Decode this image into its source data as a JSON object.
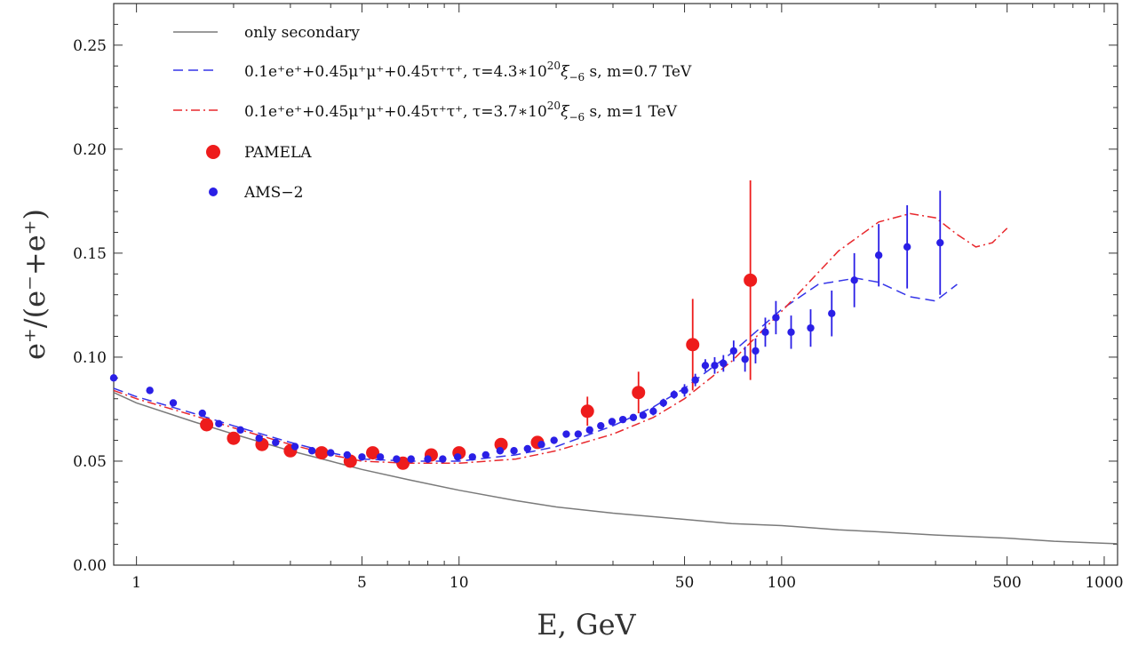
{
  "chart_data": {
    "type": "scatter",
    "xlabel": "E, GeV",
    "ylabel": "e⁺/(e⁻+e⁺)",
    "xscale": "log",
    "xlim": [
      0.85,
      1100
    ],
    "ylim": [
      0.0,
      0.27
    ],
    "grid": false,
    "legend_position": "top-left",
    "x_ticks": [
      {
        "value": 1,
        "label": "1"
      },
      {
        "value": 5,
        "label": "5"
      },
      {
        "value": 10,
        "label": "10"
      },
      {
        "value": 50,
        "label": "50"
      },
      {
        "value": 100,
        "label": "100"
      },
      {
        "value": 500,
        "label": "500"
      },
      {
        "value": 1000,
        "label": "1000"
      }
    ],
    "y_ticks": [
      {
        "value": 0.0,
        "label": "0.00"
      },
      {
        "value": 0.05,
        "label": "0.05"
      },
      {
        "value": 0.1,
        "label": "0.10"
      },
      {
        "value": 0.15,
        "label": "0.15"
      },
      {
        "value": 0.2,
        "label": "0.20"
      },
      {
        "value": 0.25,
        "label": "0.25"
      }
    ],
    "legend": {
      "secondary": "only secondary",
      "blue_model": {
        "text": "0.1e⁺e⁺+0.45μ⁺μ⁺+0.45τ⁺τ⁺,  τ=4.3∗10",
        "sup": "20",
        "tail": "ξ",
        "sub": "−6",
        "end": " s,  m=0.7 TeV"
      },
      "red_model": {
        "text": "0.1e⁺e⁺+0.45μ⁺μ⁺+0.45τ⁺τ⁺,  τ=3.7∗10",
        "sup": "20",
        "tail": "ξ",
        "sub": "−6",
        "end": " s,  m=1 TeV"
      },
      "pamela": "PAMELA",
      "ams": "AMS−2"
    },
    "colors": {
      "secondary": "#7a7a7a",
      "blue_model": "#3535e8",
      "red_model": "#e8282d",
      "pamela": "#ee1c1c",
      "ams": "#2a1fe6"
    },
    "series": [
      {
        "name": "only secondary",
        "kind": "line",
        "x": [
          0.85,
          1,
          1.5,
          2,
          3,
          4,
          5,
          7,
          10,
          15,
          20,
          30,
          50,
          70,
          100,
          150,
          200,
          300,
          500,
          700,
          1000,
          1100
        ],
        "y": [
          0.083,
          0.078,
          0.069,
          0.063,
          0.055,
          0.05,
          0.046,
          0.041,
          0.036,
          0.031,
          0.028,
          0.025,
          0.022,
          0.02,
          0.019,
          0.017,
          0.016,
          0.0145,
          0.013,
          0.0115,
          0.0105,
          0.0103
        ]
      },
      {
        "name": "0.1e⁺e⁺+0.45μ⁺μ⁺+0.45τ⁺τ⁺, τ=4.3∗10²⁰ξ₋₆ s, m=0.7 TeV",
        "kind": "dashed",
        "x": [
          0.85,
          1,
          1.5,
          2,
          3,
          4,
          5,
          7,
          10,
          15,
          20,
          30,
          40,
          50,
          70,
          100,
          130,
          170,
          200,
          250,
          300,
          350
        ],
        "y": [
          0.085,
          0.081,
          0.073,
          0.067,
          0.059,
          0.054,
          0.051,
          0.05,
          0.05,
          0.053,
          0.057,
          0.067,
          0.076,
          0.085,
          0.102,
          0.123,
          0.135,
          0.138,
          0.136,
          0.129,
          0.127,
          0.135
        ]
      },
      {
        "name": "0.1e⁺e⁺+0.45μ⁺μ⁺+0.45τ⁺τ⁺, τ=3.7∗10²⁰ξ₋₆ s, m=1 TeV",
        "kind": "dashdot",
        "x": [
          0.85,
          1,
          1.5,
          2,
          3,
          4,
          5,
          7,
          10,
          15,
          20,
          30,
          40,
          50,
          70,
          100,
          150,
          200,
          250,
          300,
          350,
          400,
          450,
          500
        ],
        "y": [
          0.084,
          0.08,
          0.072,
          0.066,
          0.058,
          0.053,
          0.05,
          0.049,
          0.049,
          0.051,
          0.055,
          0.063,
          0.071,
          0.08,
          0.098,
          0.122,
          0.151,
          0.165,
          0.169,
          0.167,
          0.159,
          0.153,
          0.155,
          0.162
        ]
      },
      {
        "name": "PAMELA",
        "kind": "points",
        "x": [
          1.65,
          2.0,
          2.45,
          3.0,
          3.75,
          4.6,
          5.4,
          6.7,
          8.2,
          10.0,
          13.5,
          17.5,
          25.0,
          36.0,
          53.0,
          80.0
        ],
        "y": [
          0.0675,
          0.061,
          0.058,
          0.055,
          0.054,
          0.05,
          0.054,
          0.049,
          0.053,
          0.054,
          0.058,
          0.059,
          0.074,
          0.083,
          0.106,
          0.137
        ],
        "err": [
          0.002,
          0.002,
          0.002,
          0.002,
          0.002,
          0.002,
          0.002,
          0.002,
          0.002,
          0.002,
          0.003,
          0.003,
          0.007,
          0.01,
          0.022,
          0.048
        ]
      },
      {
        "name": "AMS−2",
        "kind": "points",
        "x": [
          0.85,
          1.1,
          1.3,
          1.6,
          1.8,
          2.1,
          2.4,
          2.7,
          3.1,
          3.5,
          4.0,
          4.5,
          5.0,
          5.7,
          6.4,
          7.1,
          8.0,
          8.9,
          9.9,
          11.0,
          12.1,
          13.4,
          14.8,
          16.3,
          18.0,
          19.7,
          21.5,
          23.4,
          25.4,
          27.5,
          29.8,
          32.2,
          34.7,
          37.2,
          40.0,
          43.0,
          46.4,
          50.0,
          54.0,
          58.0,
          62.0,
          66.0,
          71.0,
          77.0,
          83.0,
          89.0,
          96.0,
          107.0,
          123.0,
          143.0,
          168.0,
          200.0,
          245.0,
          310.0
        ],
        "y": [
          0.09,
          0.084,
          0.078,
          0.073,
          0.068,
          0.065,
          0.061,
          0.059,
          0.057,
          0.055,
          0.054,
          0.053,
          0.052,
          0.052,
          0.051,
          0.051,
          0.051,
          0.051,
          0.052,
          0.052,
          0.053,
          0.055,
          0.055,
          0.056,
          0.058,
          0.06,
          0.063,
          0.063,
          0.065,
          0.067,
          0.069,
          0.07,
          0.071,
          0.072,
          0.074,
          0.078,
          0.082,
          0.084,
          0.089,
          0.096,
          0.096,
          0.097,
          0.103,
          0.099,
          0.103,
          0.112,
          0.119,
          0.112,
          0.114,
          0.121,
          0.137,
          0.149,
          0.153,
          0.155
        ],
        "err": [
          0.0,
          0.0,
          0.0,
          0.0,
          0.0,
          0.0,
          0.0,
          0.0,
          0.0,
          0.0,
          0.0,
          0.0,
          0.0,
          0.0,
          0.0,
          0.0,
          0.0,
          0.0,
          0.0,
          0.0,
          0.0,
          0.0,
          0.0,
          0.0,
          0.0,
          0.0,
          0.0,
          0.0,
          0.0,
          0.0,
          0.0,
          0.0,
          0.0,
          0.0,
          0.002,
          0.002,
          0.002,
          0.003,
          0.003,
          0.003,
          0.004,
          0.004,
          0.005,
          0.006,
          0.006,
          0.007,
          0.008,
          0.008,
          0.009,
          0.011,
          0.013,
          0.015,
          0.02,
          0.025
        ]
      }
    ]
  }
}
